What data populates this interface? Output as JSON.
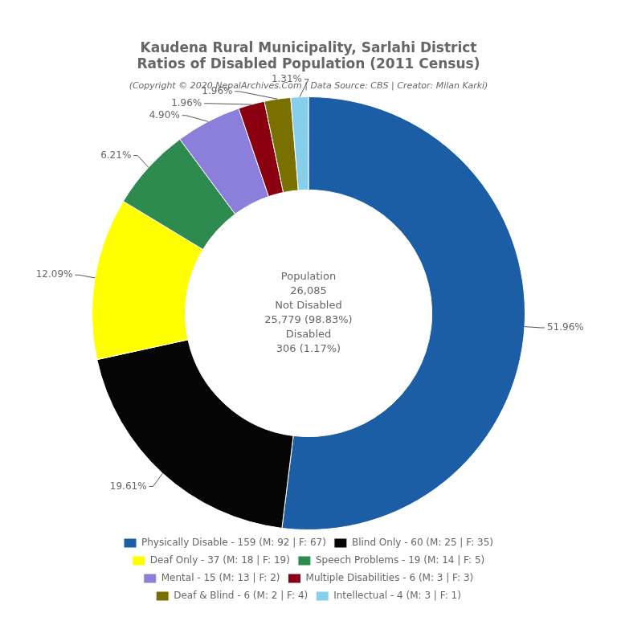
{
  "chart_data": {
    "type": "doughnut",
    "title": [
      "Kaudena Rural Municipality, Sarlahi District",
      "Ratios of Disabled Population (2011 Census)"
    ],
    "subtitle": "(Copyright © 2020 NepalArchives.Com | Data Source: CBS | Creator: Milan Karki)",
    "categories": [
      "Physically Disable - 159 (M: 92 | F: 67)",
      "Blind Only - 60 (M: 25 | F: 35)",
      "Deaf Only - 37 (M: 18 | F: 19)",
      "Speech Problems - 19 (M: 14 | F: 5)",
      "Mental - 15 (M: 13 | F: 2)",
      "Multiple Disabilities - 6 (M: 3 | F: 3)",
      "Deaf & Blind - 6 (M: 2 | F: 4)",
      "Intellectual - 4 (M: 3 | F: 1)"
    ],
    "values": [
      51.96,
      19.61,
      12.09,
      6.21,
      4.9,
      1.96,
      1.96,
      1.31
    ],
    "value_labels": [
      "51.96%",
      "19.61%",
      "12.09%",
      "6.21%",
      "4.90%",
      "1.96%",
      "1.96%",
      "1.31%"
    ],
    "colors": [
      "#1b5ea6",
      "#050505",
      "#ffff00",
      "#2e8b50",
      "#8b7fdb",
      "#8b0010",
      "#7a7000",
      "#87ceeb"
    ],
    "annotations": [
      "Population",
      "26,085",
      "Not Disabled",
      "25,779 (98.83%)",
      "Disabled",
      "306 (1.17%)"
    ],
    "legend": "bottom",
    "data_labels": true
  }
}
